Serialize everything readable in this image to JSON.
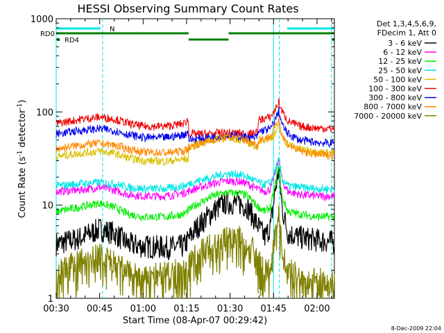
{
  "chart_data": {
    "type": "line",
    "title": "HESSI Observing Summary Count Rates",
    "xlabel": "Start Time (08-Apr-07 00:29:42)",
    "ylabel_main": "Count Rate (s",
    "ylabel_sup1": "-1",
    "ylabel_mid": " detector",
    "ylabel_sup2": "-1",
    "ylabel_end": ")",
    "yscale": "log",
    "ylim": [
      1,
      1000
    ],
    "xlim_min": [
      30,
      126
    ],
    "x_ticks": [
      {
        "t": 30,
        "label": "00:30"
      },
      {
        "t": 45,
        "label": "00:45"
      },
      {
        "t": 60,
        "label": "01:00"
      },
      {
        "t": 75,
        "label": "01:15"
      },
      {
        "t": 90,
        "label": "01:30"
      },
      {
        "t": 105,
        "label": "01:45"
      },
      {
        "t": 120,
        "label": "02:00"
      }
    ],
    "y_ticks": [
      {
        "v": 1,
        "label": "1"
      },
      {
        "v": 10,
        "label": "10"
      },
      {
        "v": 100,
        "label": "100"
      },
      {
        "v": 1000,
        "label": "1000"
      }
    ],
    "legend": {
      "header": [
        "Det 1,3,4,5,6,9,",
        "FDecim 1, Att 0"
      ],
      "position": "right"
    },
    "series": [
      {
        "name": "3 - 6 keV",
        "color": "#000000",
        "points": [
          [
            30,
            3.8
          ],
          [
            38,
            4.4
          ],
          [
            45,
            5.5
          ],
          [
            50,
            5.0
          ],
          [
            55,
            3.8
          ],
          [
            60,
            3.6
          ],
          [
            68,
            3.5
          ],
          [
            74,
            3.6
          ],
          [
            78,
            5.5
          ],
          [
            84,
            8.5
          ],
          [
            88,
            10.5
          ],
          [
            93,
            10.5
          ],
          [
            96,
            9.5
          ],
          [
            99,
            6.5
          ],
          [
            102,
            4.5
          ],
          [
            104,
            6
          ],
          [
            105.5,
            14
          ],
          [
            106.8,
            24
          ],
          [
            108,
            9
          ],
          [
            110,
            5
          ],
          [
            114,
            4.5
          ],
          [
            120,
            4.2
          ],
          [
            126,
            4.0
          ]
        ]
      },
      {
        "name": "6 - 12 keV",
        "color": "#ff00ff",
        "points": [
          [
            30,
            14
          ],
          [
            38,
            14.5
          ],
          [
            45,
            15.5
          ],
          [
            50,
            14.5
          ],
          [
            55,
            13
          ],
          [
            60,
            12.5
          ],
          [
            68,
            12.5
          ],
          [
            74,
            13.5
          ],
          [
            78,
            15
          ],
          [
            84,
            17
          ],
          [
            88,
            18
          ],
          [
            93,
            18
          ],
          [
            96,
            17
          ],
          [
            99,
            15
          ],
          [
            102,
            14
          ],
          [
            104,
            15
          ],
          [
            105.5,
            22
          ],
          [
            106.8,
            32
          ],
          [
            108,
            18
          ],
          [
            110,
            14
          ],
          [
            114,
            13
          ],
          [
            120,
            12.5
          ],
          [
            126,
            12.5
          ]
        ]
      },
      {
        "name": "12 - 25 keV",
        "color": "#00ee00",
        "points": [
          [
            30,
            8.5
          ],
          [
            38,
            9.5
          ],
          [
            45,
            10.5
          ],
          [
            50,
            9.5
          ],
          [
            55,
            8
          ],
          [
            60,
            7.5
          ],
          [
            68,
            7.5
          ],
          [
            74,
            8
          ],
          [
            78,
            10
          ],
          [
            84,
            12.5
          ],
          [
            88,
            13.5
          ],
          [
            93,
            13.5
          ],
          [
            96,
            12.5
          ],
          [
            99,
            10
          ],
          [
            102,
            8.5
          ],
          [
            104,
            9.5
          ],
          [
            105.5,
            16
          ],
          [
            106.8,
            26
          ],
          [
            108,
            12
          ],
          [
            110,
            8.5
          ],
          [
            114,
            8
          ],
          [
            120,
            7.5
          ],
          [
            126,
            7.5
          ]
        ]
      },
      {
        "name": "25 - 50 keV",
        "color": "#00e5e5",
        "points": [
          [
            30,
            16
          ],
          [
            38,
            17
          ],
          [
            45,
            17.5
          ],
          [
            50,
            17
          ],
          [
            55,
            15.5
          ],
          [
            60,
            15
          ],
          [
            68,
            15
          ],
          [
            74,
            16
          ],
          [
            78,
            18
          ],
          [
            84,
            20
          ],
          [
            88,
            21.5
          ],
          [
            93,
            21.5
          ],
          [
            96,
            20
          ],
          [
            99,
            18
          ],
          [
            102,
            16.5
          ],
          [
            104,
            17.5
          ],
          [
            105.5,
            23
          ],
          [
            106.8,
            30
          ],
          [
            108,
            19
          ],
          [
            110,
            16
          ],
          [
            114,
            15.5
          ],
          [
            120,
            15
          ],
          [
            126,
            15
          ]
        ]
      },
      {
        "name": "50 - 100 keV",
        "color": "#d8c000",
        "points": [
          [
            30,
            33
          ],
          [
            38,
            36
          ],
          [
            45,
            38
          ],
          [
            50,
            36
          ],
          [
            55,
            32
          ],
          [
            60,
            30
          ],
          [
            68,
            29.5
          ],
          [
            74,
            31
          ],
          [
            75.6,
            31
          ],
          [
            75.8,
            42
          ],
          [
            80,
            47
          ],
          [
            86,
            52
          ],
          [
            90,
            53
          ],
          [
            94,
            50
          ],
          [
            98,
            44
          ],
          [
            99.5,
            42
          ],
          [
            100,
            50
          ],
          [
            104,
            52
          ],
          [
            105.5,
            58
          ],
          [
            106.8,
            70
          ],
          [
            108,
            53
          ],
          [
            110,
            45
          ],
          [
            114,
            40
          ],
          [
            120,
            37
          ],
          [
            126,
            36
          ]
        ]
      },
      {
        "name": "100 - 300 keV",
        "color": "#ee0000",
        "points": [
          [
            30,
            75
          ],
          [
            38,
            83
          ],
          [
            45,
            88
          ],
          [
            50,
            84
          ],
          [
            55,
            75
          ],
          [
            60,
            70
          ],
          [
            68,
            70
          ],
          [
            74,
            75
          ],
          [
            75.5,
            83
          ],
          [
            75.8,
            58
          ],
          [
            82,
            58
          ],
          [
            88,
            60
          ],
          [
            93,
            59
          ],
          [
            98,
            58
          ],
          [
            99.5,
            62
          ],
          [
            100,
            82
          ],
          [
            104,
            88
          ],
          [
            105.5,
            105
          ],
          [
            106.8,
            127
          ],
          [
            108,
            100
          ],
          [
            110,
            80
          ],
          [
            114,
            70
          ],
          [
            120,
            67
          ],
          [
            126,
            66
          ]
        ]
      },
      {
        "name": "300 - 800 keV",
        "color": "#0000ee",
        "points": [
          [
            30,
            58
          ],
          [
            38,
            63
          ],
          [
            45,
            66
          ],
          [
            50,
            63
          ],
          [
            55,
            57
          ],
          [
            60,
            53
          ],
          [
            68,
            53
          ],
          [
            74,
            57
          ],
          [
            75.5,
            61
          ],
          [
            75.8,
            50
          ],
          [
            82,
            53
          ],
          [
            88,
            56
          ],
          [
            93,
            55
          ],
          [
            98,
            52
          ],
          [
            99.5,
            55
          ],
          [
            100,
            62
          ],
          [
            104,
            66
          ],
          [
            105.5,
            82
          ],
          [
            106.8,
            102
          ],
          [
            108,
            72
          ],
          [
            110,
            58
          ],
          [
            114,
            50
          ],
          [
            120,
            47
          ],
          [
            126,
            46
          ]
        ]
      },
      {
        "name": "800 - 7000 keV",
        "color": "#ff8800",
        "points": [
          [
            30,
            40
          ],
          [
            38,
            44
          ],
          [
            45,
            46
          ],
          [
            50,
            44
          ],
          [
            55,
            40
          ],
          [
            60,
            37
          ],
          [
            68,
            36.5
          ],
          [
            74,
            38
          ],
          [
            75.5,
            40
          ],
          [
            75.8,
            42
          ],
          [
            82,
            48
          ],
          [
            88,
            54
          ],
          [
            93,
            53
          ],
          [
            98,
            46
          ],
          [
            99.5,
            44
          ],
          [
            100,
            50
          ],
          [
            104,
            55
          ],
          [
            105.5,
            68
          ],
          [
            106.8,
            85
          ],
          [
            108,
            56
          ],
          [
            110,
            45
          ],
          [
            114,
            38
          ],
          [
            120,
            35
          ],
          [
            126,
            34
          ]
        ]
      },
      {
        "name": "7000 - 20000 keV",
        "color": "#808000",
        "points": [
          [
            30,
            2.0
          ],
          [
            38,
            2.5
          ],
          [
            45,
            3.0
          ],
          [
            50,
            2.4
          ],
          [
            55,
            2.0
          ],
          [
            60,
            1.6
          ],
          [
            68,
            2.0
          ],
          [
            74,
            2.0
          ],
          [
            78,
            3.0
          ],
          [
            84,
            4.0
          ],
          [
            88,
            4.5
          ],
          [
            93,
            4.5
          ],
          [
            96,
            4.0
          ],
          [
            99,
            3.0
          ],
          [
            102,
            2.0
          ],
          [
            104,
            2.0
          ],
          [
            105.5,
            5
          ],
          [
            106.8,
            9
          ],
          [
            108,
            3
          ],
          [
            110,
            2.0
          ],
          [
            114,
            1.8
          ],
          [
            120,
            1.6
          ],
          [
            126,
            1.5
          ]
        ]
      }
    ],
    "flags": [
      {
        "name": "N",
        "color": "#00e5e5",
        "row": 0,
        "segments": [
          [
            30,
            45.3
          ],
          [
            109.7,
            126
          ]
        ]
      },
      {
        "name": "RD0",
        "color": "#008000",
        "row": 1,
        "segments": [
          [
            30,
            75.7
          ],
          [
            89.5,
            126
          ]
        ]
      },
      {
        "name": "",
        "color": "#008000",
        "row": 2,
        "segments": [
          [
            75.7,
            89.5
          ]
        ]
      },
      {
        "name": "RD4",
        "color": "#008000",
        "row": 2,
        "segments": []
      }
    ],
    "vlines_solid": [
      30,
      105
    ],
    "vlines_dashed": [
      46,
      107,
      125
    ]
  },
  "footer": {
    "timestamp": "8-Dec-2009 22:04"
  }
}
